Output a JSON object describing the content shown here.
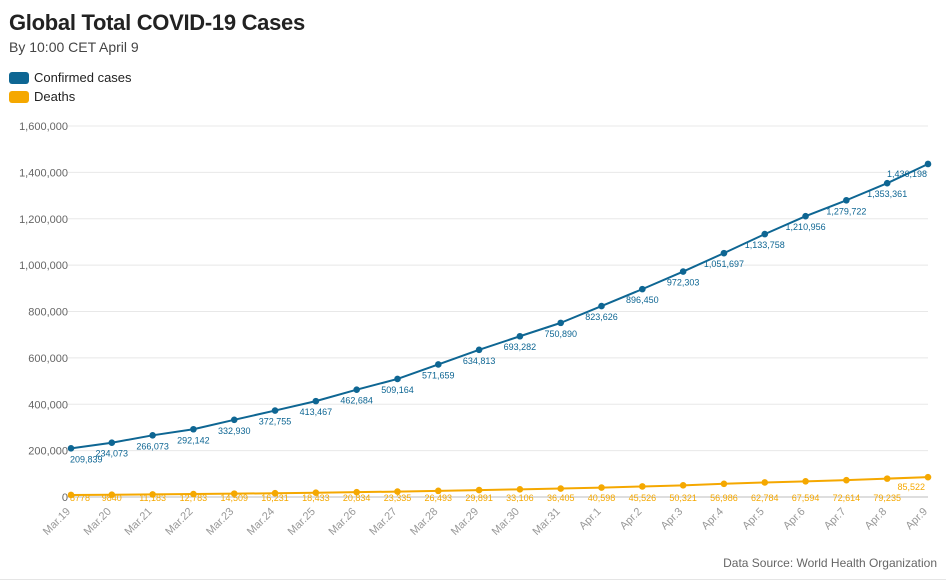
{
  "header": {
    "title": "Global Total COVID-19 Cases",
    "subtitle": "By 10:00 CET April 9"
  },
  "legend": [
    {
      "label": "Confirmed cases",
      "color": "#0e6693"
    },
    {
      "label": "Deaths",
      "color": "#f5a800"
    }
  ],
  "footer": {
    "source": "Data Source: World Health Organization"
  },
  "chart_data": {
    "type": "line",
    "title": "Global Total COVID-19 Cases",
    "subtitle": "By 10:00 CET April 9",
    "xlabel": "",
    "ylabel": "",
    "ylim": [
      0,
      1600000
    ],
    "yticks": [
      0,
      200000,
      400000,
      600000,
      800000,
      1000000,
      1200000,
      1400000,
      1600000
    ],
    "ytick_labels": [
      "0",
      "200,000",
      "400,000",
      "600,000",
      "800,000",
      "1,000,000",
      "1,200,000",
      "1,400,000",
      "1,600,000"
    ],
    "grid": true,
    "legend_position": "top-left",
    "categories": [
      "Mar.19",
      "Mar.20",
      "Mar.21",
      "Mar.22",
      "Mar.23",
      "Mar.24",
      "Mar.25",
      "Mar.26",
      "Mar.27",
      "Mar.28",
      "Mar.29",
      "Mar.30",
      "Mar.31",
      "Apr.1",
      "Apr.2",
      "Apr.3",
      "Apr.4",
      "Apr.5",
      "Apr.6",
      "Apr.7",
      "Apr.8",
      "Apr.9"
    ],
    "series": [
      {
        "name": "Confirmed cases",
        "color": "#0e6693",
        "values": [
          209839,
          234073,
          266073,
          292142,
          332930,
          372755,
          413467,
          462684,
          509164,
          571659,
          634813,
          693282,
          750890,
          823626,
          896450,
          972303,
          1051697,
          1133758,
          1210956,
          1279722,
          1353361,
          1436198
        ],
        "labels": [
          "209,839",
          "234,073",
          "266,073",
          "292,142",
          "332,930",
          "372,755",
          "413,467",
          "462,684",
          "509,164",
          "571,659",
          "634,813",
          "693,282",
          "750,890",
          "823,626",
          "896,450",
          "972,303",
          "1,051,697",
          "1,133,758",
          "1,210,956",
          "1,279,722",
          "1,353,361",
          "1,436,198"
        ]
      },
      {
        "name": "Deaths",
        "color": "#f5a800",
        "values": [
          8778,
          9840,
          11183,
          12783,
          14509,
          16231,
          18433,
          20834,
          23335,
          26493,
          29891,
          33106,
          36405,
          40598,
          45526,
          50321,
          56986,
          62784,
          67594,
          72614,
          79235,
          85522
        ],
        "labels": [
          "8778",
          "9840",
          "11,183",
          "12,783",
          "14,509",
          "16,231",
          "18,433",
          "20,834",
          "23,335",
          "26,493",
          "29,891",
          "33,106",
          "36,405",
          "40,598",
          "45,526",
          "50,321",
          "56,986",
          "62,784",
          "67,594",
          "72,614",
          "79,235",
          "85,522"
        ]
      }
    ]
  }
}
